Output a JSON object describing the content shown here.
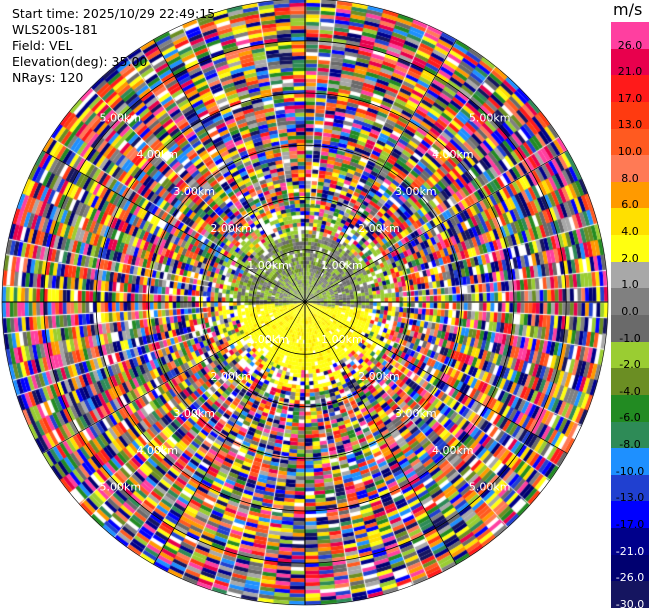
{
  "info": {
    "start_time": "Start time: 2025/10/29 22:49:15",
    "station": "WLS200s-181",
    "field": "Field: VEL",
    "elevation": "Elevation(deg): 35.00",
    "nrays": "NRays: 120"
  },
  "colorbar": {
    "unit": "m/s",
    "levels": [
      {
        "label": "26.0",
        "color": "#ff3fa0"
      },
      {
        "label": "21.0",
        "color": "#e8004d"
      },
      {
        "label": "17.0",
        "color": "#ff1a1a"
      },
      {
        "label": "13.0",
        "color": "#ff3a10"
      },
      {
        "label": "10.0",
        "color": "#ff5a20"
      },
      {
        "label": "8.0",
        "color": "#ff7a55"
      },
      {
        "label": "6.0",
        "color": "#ff9a00"
      },
      {
        "label": "4.0",
        "color": "#ffe000"
      },
      {
        "label": "2.0",
        "color": "#ffff10"
      },
      {
        "label": "1.0",
        "color": "#a8a8a8"
      },
      {
        "label": "0.0",
        "color": "#808080"
      },
      {
        "label": "-1.0",
        "color": "#6a6a6a"
      },
      {
        "label": "-2.0",
        "color": "#9acd32"
      },
      {
        "label": "-4.0",
        "color": "#6b8e23"
      },
      {
        "label": "-6.0",
        "color": "#228b22"
      },
      {
        "label": "-8.0",
        "color": "#2e8b57"
      },
      {
        "label": "-10.0",
        "color": "#1e90ff"
      },
      {
        "label": "-13.0",
        "color": "#2040d0"
      },
      {
        "label": "-17.0",
        "color": "#0000ff"
      },
      {
        "label": "-21.0",
        "color": "#00008b"
      },
      {
        "label": "-26.0",
        "color": "#000070"
      },
      {
        "label": "-30.0",
        "color": "#151560"
      }
    ]
  },
  "chart_data": {
    "type": "heatmap",
    "field": "VEL",
    "nrays": 120,
    "range_rings": [
      "1.00km",
      "2.00km",
      "3.00km",
      "4.00km",
      "5.00km"
    ],
    "range_rings_km": [
      1,
      2,
      3,
      4,
      5
    ],
    "max_range_km": 5.8,
    "azimuth_spokes_deg": [
      0,
      30,
      60,
      90,
      120,
      150,
      180,
      210,
      240,
      270,
      300,
      330
    ],
    "inner_pattern": "near range (< ~1.7 km): grey/green negative velocities north, yellow positive velocities south; beyond: noisy multicolor"
  }
}
